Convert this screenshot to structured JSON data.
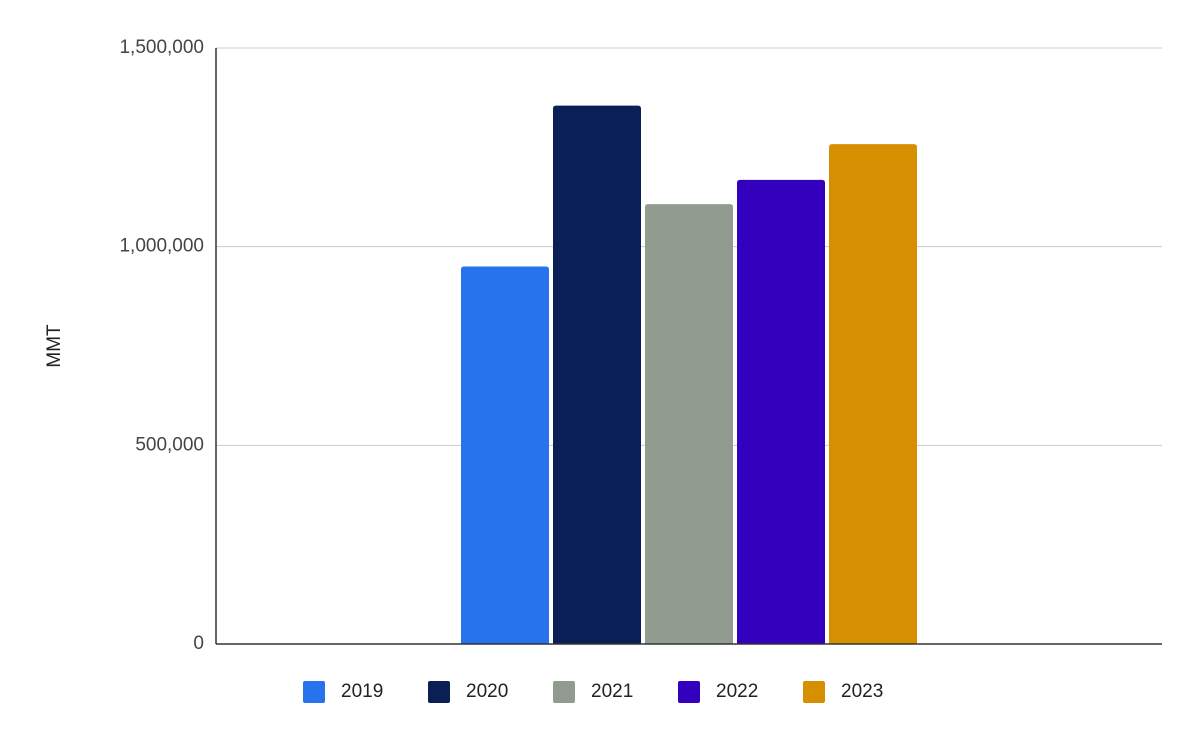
{
  "chart_data": {
    "type": "bar",
    "ylabel": "MMT",
    "ylim": [
      0,
      1500000
    ],
    "yticks": [
      0,
      500000,
      1000000,
      1500000
    ],
    "ytick_labels": [
      "0",
      "500,000",
      "1,000,000",
      "1,500,000"
    ],
    "grid": true,
    "legend_position": "bottom",
    "series": [
      {
        "name": "2019",
        "values": [
          950000
        ],
        "color": "#2673ed"
      },
      {
        "name": "2020",
        "values": [
          1355000
        ],
        "color": "#0a1f55"
      },
      {
        "name": "2021",
        "values": [
          1107000
        ],
        "color": "#919b8f"
      },
      {
        "name": "2022",
        "values": [
          1168000
        ],
        "color": "#3300bd"
      },
      {
        "name": "2023",
        "values": [
          1258000
        ],
        "color": "#d68f00"
      }
    ]
  }
}
